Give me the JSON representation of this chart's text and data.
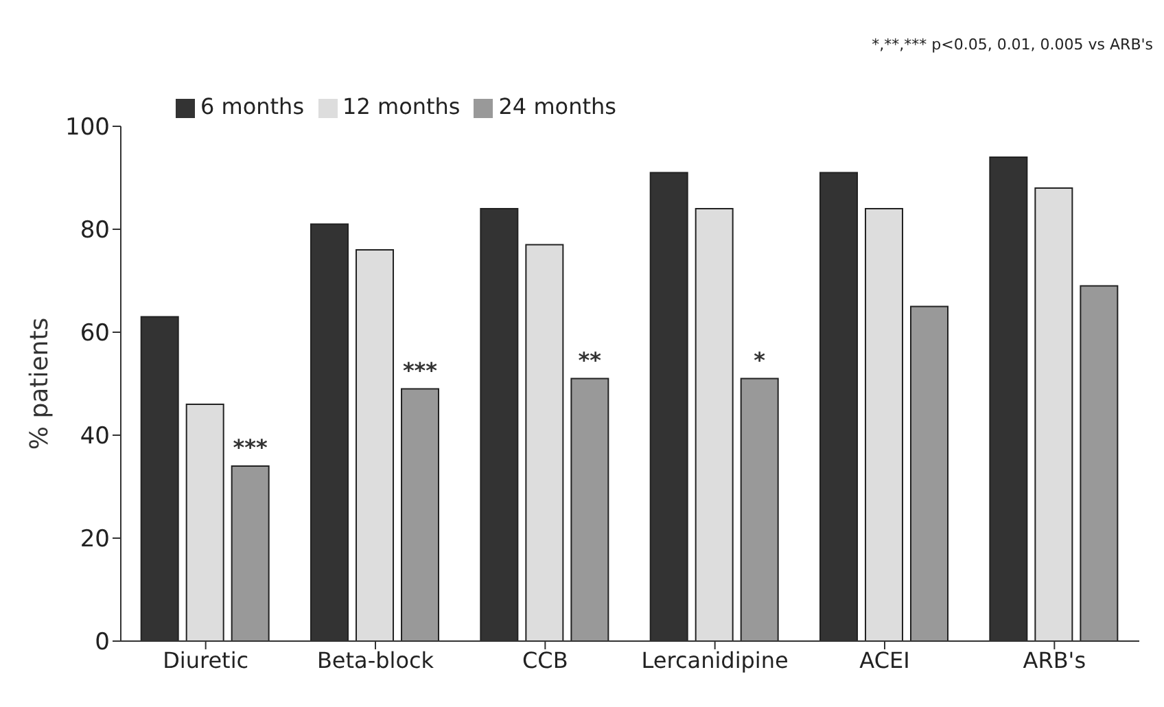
{
  "chart_data": {
    "type": "bar",
    "ylabel": "% patients",
    "categories": [
      "Diuretic",
      "Beta-block",
      "CCB",
      "Lercanidipine",
      "ACEI",
      "ARB's"
    ],
    "series": [
      {
        "name": "6 months",
        "color": "#333333",
        "values": [
          63,
          81,
          84,
          91,
          91,
          94
        ]
      },
      {
        "name": "12 months",
        "color": "#dddddd",
        "values": [
          46,
          76,
          77,
          84,
          84,
          88
        ]
      },
      {
        "name": "24 months",
        "color": "#999999",
        "values": [
          34,
          49,
          51,
          51,
          65,
          69
        ]
      }
    ],
    "ylim": [
      0,
      100
    ],
    "yticks": [
      0,
      20,
      40,
      60,
      80,
      100
    ],
    "grid": false,
    "legend": "top",
    "annotations": [
      "*,**,*** p<0.05, 0.01, 0.005 vs ARB's",
      "***",
      "***",
      "**",
      "*"
    ]
  }
}
